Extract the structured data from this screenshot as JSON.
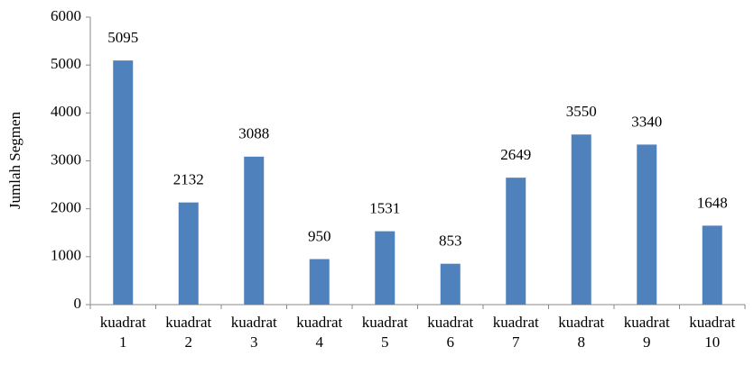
{
  "chart_data": {
    "type": "bar",
    "y_label": "Jumlah Segmen",
    "categories": [
      "kuadrat 1",
      "kuadrat 2",
      "kuadrat 3",
      "kuadrat 4",
      "kuadrat 5",
      "kuadrat 6",
      "kuadrat 7",
      "kuadrat 8",
      "kuadrat 9",
      "kuadrat 10"
    ],
    "values": [
      5095,
      2132,
      3088,
      950,
      1531,
      853,
      2649,
      3550,
      3340,
      1648
    ],
    "color": "#4f81bd",
    "ylim": [
      0,
      6000
    ],
    "yticks": [
      0,
      1000,
      2000,
      3000,
      4000,
      5000,
      6000
    ],
    "grid": false
  }
}
